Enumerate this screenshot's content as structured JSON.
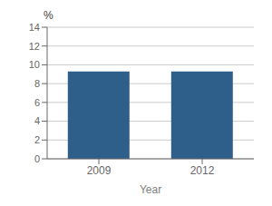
{
  "chart_data": {
    "type": "bar",
    "categories": [
      "2009",
      "2012"
    ],
    "values": [
      9.3,
      9.3
    ],
    "color": "#2E5F8A",
    "xlabel": "Year",
    "ylabel": "%",
    "ylim": [
      0,
      14
    ],
    "yticks": [
      0,
      2,
      4,
      6,
      8,
      10,
      12,
      14
    ],
    "grid": true
  }
}
